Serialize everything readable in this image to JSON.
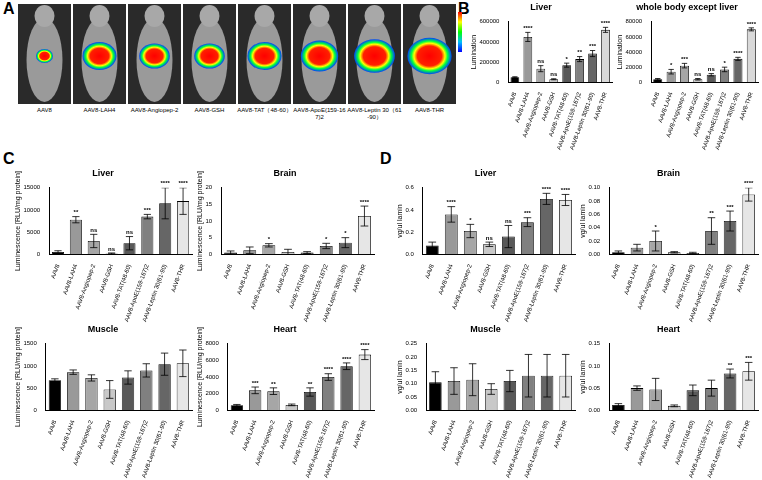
{
  "panel_labels": [
    "A",
    "B",
    "C",
    "D"
  ],
  "panel_a": {
    "image_labels": [
      "AAV8",
      "AAV8-LAH4",
      "AAV8-Angiopep-2",
      "AAV8-GSH",
      "AAV8-TAT（48-60）",
      "AAV8-ApoE(159-167)2",
      "AAV8-Leptin 30（61-90）",
      "AAV8-THR"
    ]
  },
  "chart_data": [
    {
      "type": "bar",
      "title": "Liver",
      "y_label": "Lumination",
      "categories": [
        "AAV8",
        "AAV8-LAH4",
        "AAV8-Angiopep-2",
        "AAV8-GSH",
        "AAV8-TAT(48-60)",
        "AAV8-ApoE(159-167)2",
        "AAV8-Leptin 30(61-90)",
        "AAV8-THR"
      ],
      "values": [
        50000,
        450000,
        135000,
        30000,
        170000,
        230000,
        285000,
        520000
      ],
      "errors": [
        5000,
        45000,
        30000,
        5000,
        20000,
        25000,
        30000,
        25000
      ],
      "annotations": [
        null,
        "****",
        "ns",
        "ns",
        "*",
        "**",
        "***",
        "****"
      ],
      "colors": [
        "#000000",
        "#999999",
        "#a6a6a6",
        "#c8c8c8",
        "#595959",
        "#808080",
        "#666666",
        "#d9d9d9"
      ],
      "ylim": [
        0,
        600000
      ],
      "yticks": [
        0,
        200000,
        400000,
        600000
      ],
      "grid": false
    },
    {
      "type": "bar",
      "title": "whole body except liver",
      "y_label": "Lumination",
      "categories": [
        "AAV8",
        "AAV8-LAH4",
        "AAV8-Angiopep-2",
        "AAV8-GSH",
        "AAV8-TAT(48-60)",
        "AAV8-ApoE(159-167)2",
        "AAV8-Leptin 30(61-90)",
        "AAV8-THR"
      ],
      "values": [
        4000,
        14000,
        22000,
        4000,
        10000,
        17000,
        31000,
        70000
      ],
      "errors": [
        1000,
        3000,
        3000,
        1000,
        1500,
        3000,
        2000,
        2000
      ],
      "annotations": [
        null,
        "*",
        "***",
        "ns",
        "ns",
        "*",
        "****",
        "****"
      ],
      "colors": [
        "#000000",
        "#999999",
        "#a6a6a6",
        "#c8c8c8",
        "#595959",
        "#808080",
        "#666666",
        "#d9d9d9"
      ],
      "ylim": [
        0,
        80000
      ],
      "yticks": [
        0,
        20000,
        40000,
        60000,
        80000
      ],
      "grid": false
    },
    {
      "type": "bar",
      "title": "Liver",
      "y_label": "Luminescence [RLU/mg protein]",
      "categories": [
        "AAV8",
        "AAV8-LAH4",
        "AAV8-Angiopep-2",
        "AAV8-GSH",
        "AAV8-TAT(48-60)",
        "AAV8-ApoE(159-167)2",
        "AAV8-Leptin 30(61-90)",
        "AAV8-THR"
      ],
      "values": [
        500,
        7800,
        3000,
        200,
        2500,
        8500,
        11500,
        12000
      ],
      "errors": [
        300,
        700,
        1500,
        100,
        1500,
        500,
        3500,
        3000
      ],
      "annotations": [
        null,
        "**",
        "ns",
        "ns",
        "ns",
        "***",
        "****",
        "****"
      ],
      "colors": [
        "#000000",
        "#999999",
        "#a6a6a6",
        "#c8c8c8",
        "#595959",
        "#808080",
        "#666666",
        "#e6e6e6"
      ],
      "ylim": [
        0,
        15000
      ],
      "yticks": [
        0,
        5000,
        10000,
        15000
      ],
      "grid": false
    },
    {
      "type": "bar",
      "title": "Brain",
      "y_label": "Luminescence [RLU/mg protein]",
      "categories": [
        "AAV8",
        "AAV8-LAH4",
        "AAV8-Angiopep-2",
        "AAV8-GSH",
        "AAV8-TAT(48-60)",
        "AAV8-ApoE(159-167)2",
        "AAV8-Leptin 30(61-90)",
        "AAV8-THR"
      ],
      "values": [
        0.5,
        1.2,
        2.7,
        0.7,
        0.5,
        2.5,
        3.5,
        11.5
      ],
      "errors": [
        0.5,
        1,
        0.5,
        0.8,
        0.3,
        0.8,
        1.5,
        3
      ],
      "annotations": [
        null,
        null,
        "*",
        null,
        null,
        "*",
        "*",
        "****"
      ],
      "colors": [
        "#000000",
        "#999999",
        "#a6a6a6",
        "#c8c8c8",
        "#595959",
        "#808080",
        "#666666",
        "#e6e6e6"
      ],
      "ylim": [
        0,
        20
      ],
      "yticks": [
        0,
        5,
        10,
        15,
        20
      ],
      "grid": false
    },
    {
      "type": "bar",
      "title": "Muscle",
      "y_label": "Luminescence [RLU/mg protein]",
      "categories": [
        "AAV8",
        "AAV8-LAH4",
        "AAV8-Angiopep-2",
        "AAV8-GSH",
        "AAV8-TAT(48-60)",
        "AAV8-ApoE(159-167)2",
        "AAV8-Leptin 30(61-90)",
        "AAV8-THR"
      ],
      "values": [
        680,
        860,
        730,
        470,
        740,
        900,
        1040,
        1060
      ],
      "errors": [
        30,
        50,
        70,
        200,
        150,
        150,
        250,
        300
      ],
      "annotations": [
        null,
        null,
        null,
        null,
        null,
        null,
        null,
        null
      ],
      "colors": [
        "#000000",
        "#999999",
        "#a6a6a6",
        "#c8c8c8",
        "#595959",
        "#808080",
        "#666666",
        "#e6e6e6"
      ],
      "ylim": [
        0,
        1500
      ],
      "yticks": [
        0,
        500,
        1000,
        1500
      ],
      "grid": false
    },
    {
      "type": "bar",
      "title": "Heart",
      "y_label": "Luminescence [RLU/mg protein]",
      "categories": [
        "AAV8",
        "AAV8-LAH4",
        "AAV8-Angiopep-2",
        "AAV8-GSH",
        "AAV8-TAT(48-60)",
        "AAV8-ApoE(159-167)2",
        "AAV8-Leptin 30(61-90)",
        "AAV8-THR"
      ],
      "values": [
        600,
        2400,
        2300,
        650,
        2200,
        4000,
        5300,
        6700
      ],
      "errors": [
        100,
        400,
        400,
        100,
        500,
        400,
        400,
        600
      ],
      "annotations": [
        null,
        "***",
        "**",
        null,
        "**",
        "****",
        "****",
        "****"
      ],
      "colors": [
        "#000000",
        "#999999",
        "#a6a6a6",
        "#c8c8c8",
        "#595959",
        "#808080",
        "#666666",
        "#e6e6e6"
      ],
      "ylim": [
        0,
        8000
      ],
      "yticks": [
        0,
        2000,
        4000,
        6000,
        8000
      ],
      "grid": false
    },
    {
      "type": "bar",
      "title": "Liver",
      "y_label": "vg/ul lamin",
      "categories": [
        "AAV8",
        "AAV8-LAH4",
        "AAV8-Angiopep-2",
        "AAV8-GSH",
        "AAV8-TAT(48-60)",
        "AAV8-ApoE(159-167)2",
        "AAV8-Leptin 30(61-90)",
        "AAV8-THR"
      ],
      "values": [
        0.08,
        0.36,
        0.21,
        0.09,
        0.16,
        0.29,
        0.5,
        0.49
      ],
      "errors": [
        0.03,
        0.07,
        0.06,
        0.02,
        0.1,
        0.04,
        0.05,
        0.05
      ],
      "annotations": [
        null,
        "****",
        "*",
        "ns",
        "ns",
        "***",
        "****",
        "****"
      ],
      "colors": [
        "#000000",
        "#999999",
        "#a6a6a6",
        "#c8c8c8",
        "#595959",
        "#808080",
        "#666666",
        "#e6e6e6"
      ],
      "ylim": [
        0,
        0.6
      ],
      "yticks": [
        {
          "value": 0,
          "label": "0.0"
        },
        0.2,
        0.4,
        0.6
      ],
      "grid": false
    },
    {
      "type": "bar",
      "title": "Brain",
      "y_label": "vg/ul lamin",
      "categories": [
        "AAV8",
        "AAV8-LAH4",
        "AAV8-Angiopep-2",
        "AAV8-GSH",
        "AAV8-TAT(48-60)",
        "AAV8-ApoE(159-167)2",
        "AAV8-Leptin 30(61-90)",
        "AAV8-THR"
      ],
      "values": [
        0.003,
        0.01,
        0.02,
        0.003,
        0.002,
        0.035,
        0.05,
        0.09
      ],
      "errors": [
        0.002,
        0.005,
        0.015,
        0.001,
        0.001,
        0.02,
        0.015,
        0.01
      ],
      "annotations": [
        null,
        null,
        "*",
        null,
        null,
        "**",
        "***",
        "****"
      ],
      "colors": [
        "#000000",
        "#999999",
        "#a6a6a6",
        "#c8c8c8",
        "#595959",
        "#808080",
        "#666666",
        "#e6e6e6"
      ],
      "ylim": [
        0,
        0.1
      ],
      "yticks": [
        {
          "value": 0,
          "label": "0.00"
        },
        0.02,
        0.04,
        0.06,
        0.08,
        {
          "value": 0.1,
          "label": "0.10"
        }
      ],
      "grid": false
    },
    {
      "type": "bar",
      "title": "Muscle",
      "y_label": "vg/ul lamin",
      "categories": [
        "AAV8",
        "AAV8-LAH4",
        "AAV8-Angiopep-2",
        "AAV8-GSH",
        "AAV8-TAT(48-60)",
        "AAV8-ApoE(159-167)2",
        "AAV8-Leptin 30(61-90)",
        "AAV8-THR"
      ],
      "values": [
        0.105,
        0.11,
        0.115,
        0.08,
        0.11,
        0.13,
        0.13,
        0.13
      ],
      "errors": [
        0.04,
        0.05,
        0.06,
        0.02,
        0.04,
        0.08,
        0.08,
        0.08
      ],
      "annotations": [
        null,
        null,
        null,
        null,
        null,
        null,
        null,
        null
      ],
      "colors": [
        "#000000",
        "#999999",
        "#a6a6a6",
        "#c8c8c8",
        "#595959",
        "#808080",
        "#666666",
        "#e6e6e6"
      ],
      "ylim": [
        0,
        0.25
      ],
      "yticks": [
        {
          "value": 0,
          "label": "0.00"
        },
        0.05,
        {
          "value": 0.1,
          "label": "0.10"
        },
        0.15,
        {
          "value": 0.2,
          "label": "0.20"
        },
        0.25
      ],
      "grid": false
    },
    {
      "type": "bar",
      "title": "Heart",
      "y_label": "vg/ul lamin",
      "categories": [
        "AAV8",
        "AAV8-LAH4",
        "AAV8-Angiopep-2",
        "AAV8-GSH",
        "AAV8-TAT(48-60)",
        "AAV8-ApoE(159-167)2",
        "AAV8-Leptin 30(61-90)",
        "AAV8-THR"
      ],
      "values": [
        0.012,
        0.05,
        0.047,
        0.01,
        0.045,
        0.05,
        0.083,
        0.088
      ],
      "errors": [
        0.003,
        0.005,
        0.025,
        0.002,
        0.012,
        0.018,
        0.01,
        0.02
      ],
      "annotations": [
        null,
        null,
        null,
        null,
        null,
        null,
        "**",
        "***"
      ],
      "colors": [
        "#000000",
        "#999999",
        "#a6a6a6",
        "#c8c8c8",
        "#595959",
        "#808080",
        "#666666",
        "#e6e6e6"
      ],
      "ylim": [
        0,
        0.15
      ],
      "yticks": [
        {
          "value": 0,
          "label": "0.00"
        },
        0.05,
        {
          "value": 0.1,
          "label": "0.10"
        },
        0.15
      ],
      "grid": false
    }
  ]
}
